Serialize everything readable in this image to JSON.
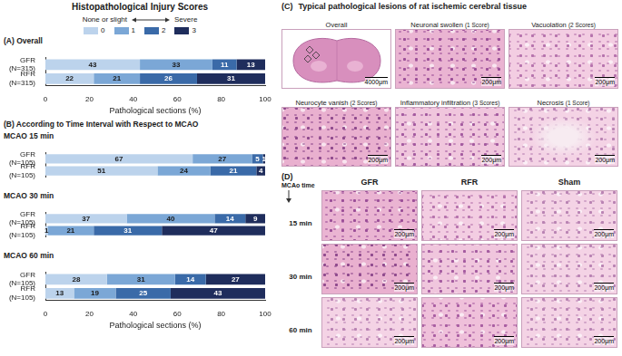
{
  "title": "Histopathological Injury Scores",
  "legend_scale": {
    "low": "None or slight",
    "high": "Severe"
  },
  "group_title": "(B) According to Time Interval with Respect to MCAO",
  "chart_data": [
    {
      "type": "bar",
      "title": "(A) Overall",
      "orientation": "horizontal",
      "stacked": true,
      "data_labels": true,
      "legend": "top",
      "categories": [
        "GFR (N=315)",
        "RFR (N=315)"
      ],
      "series": [
        {
          "name": "0",
          "color": "#bcd3ec",
          "values": [
            43,
            22
          ]
        },
        {
          "name": "1",
          "color": "#7ba7d6",
          "values": [
            33,
            21
          ]
        },
        {
          "name": "2",
          "color": "#3a6aa8",
          "values": [
            11,
            26
          ]
        },
        {
          "name": "3",
          "color": "#1f2d5c",
          "values": [
            13,
            31
          ]
        }
      ],
      "xlabel": "Pathological sections (%)",
      "xlim": [
        0,
        100
      ],
      "xticks": [
        0,
        20,
        40,
        60,
        80,
        100
      ],
      "grid": false
    },
    {
      "type": "bar",
      "title": "MCAO 15 min",
      "orientation": "horizontal",
      "stacked": true,
      "data_labels": true,
      "tick_labels": "y",
      "categories": [
        "GFR (N=105)",
        "RFR (N=105)"
      ],
      "series": [
        {
          "name": "0",
          "color": "#bcd3ec",
          "values": [
            67,
            51
          ]
        },
        {
          "name": "1",
          "color": "#7ba7d6",
          "values": [
            27,
            24
          ]
        },
        {
          "name": "2",
          "color": "#3a6aa8",
          "values": [
            5,
            21
          ]
        },
        {
          "name": "3",
          "color": "#1f2d5c",
          "values": [
            1,
            4
          ]
        }
      ],
      "xlim": [
        0,
        100
      ],
      "xticks": [
        0,
        20,
        40,
        60,
        80,
        100
      ],
      "grid": false
    },
    {
      "type": "bar",
      "title": "MCAO 30 min",
      "orientation": "horizontal",
      "stacked": true,
      "data_labels": true,
      "tick_labels": "y",
      "categories": [
        "GFR (N=105)",
        "RFR (N=105)"
      ],
      "series": [
        {
          "name": "0",
          "color": "#bcd3ec",
          "values": [
            37,
            1
          ]
        },
        {
          "name": "1",
          "color": "#7ba7d6",
          "values": [
            40,
            21
          ]
        },
        {
          "name": "2",
          "color": "#3a6aa8",
          "values": [
            14,
            31
          ]
        },
        {
          "name": "3",
          "color": "#1f2d5c",
          "values": [
            9,
            47
          ]
        }
      ],
      "xlim": [
        0,
        100
      ],
      "xticks": [
        0,
        20,
        40,
        60,
        80,
        100
      ],
      "grid": false
    },
    {
      "type": "bar",
      "title": "MCAO 60 min",
      "orientation": "horizontal",
      "stacked": true,
      "data_labels": true,
      "categories": [
        "GFR (N=105)",
        "RFR (N=105)"
      ],
      "series": [
        {
          "name": "0",
          "color": "#bcd3ec",
          "values": [
            28,
            13
          ]
        },
        {
          "name": "1",
          "color": "#7ba7d6",
          "values": [
            31,
            19
          ]
        },
        {
          "name": "2",
          "color": "#3a6aa8",
          "values": [
            14,
            25
          ]
        },
        {
          "name": "3",
          "color": "#1f2d5c",
          "values": [
            27,
            43
          ]
        }
      ],
      "xlabel": "Pathological sections (%)",
      "xlim": [
        0,
        100
      ],
      "xticks": [
        0,
        20,
        40,
        60,
        80,
        100
      ],
      "grid": false
    }
  ],
  "panel_c": {
    "label": "(C)",
    "title": "Typical pathological lesions of rat ischemic cerebral tissue",
    "images": [
      {
        "caption": "Overall",
        "scale_bar": "4000μm"
      },
      {
        "caption": "Neuronal swollen",
        "score": "(1 Score)",
        "scale_bar": "200μm"
      },
      {
        "caption": "Vacuolation",
        "score": "(2 Scores)",
        "scale_bar": "200μm"
      },
      {
        "caption": "Neurocyte vanish",
        "score": "(2 Scores)",
        "scale_bar": "200μm"
      },
      {
        "caption": "Inflammatory infiltration",
        "score": "(3 Scores)",
        "scale_bar": "200μm"
      },
      {
        "caption": "Necrosis",
        "score": "(1 Score)",
        "scale_bar": "200μm"
      }
    ]
  },
  "panel_d": {
    "label": "(D)",
    "row_header": "MCAo time",
    "columns": [
      "GFR",
      "RFR",
      "Sham"
    ],
    "rows": [
      "15 min",
      "30 min",
      "60 min"
    ],
    "scale_bar": "200μm"
  }
}
